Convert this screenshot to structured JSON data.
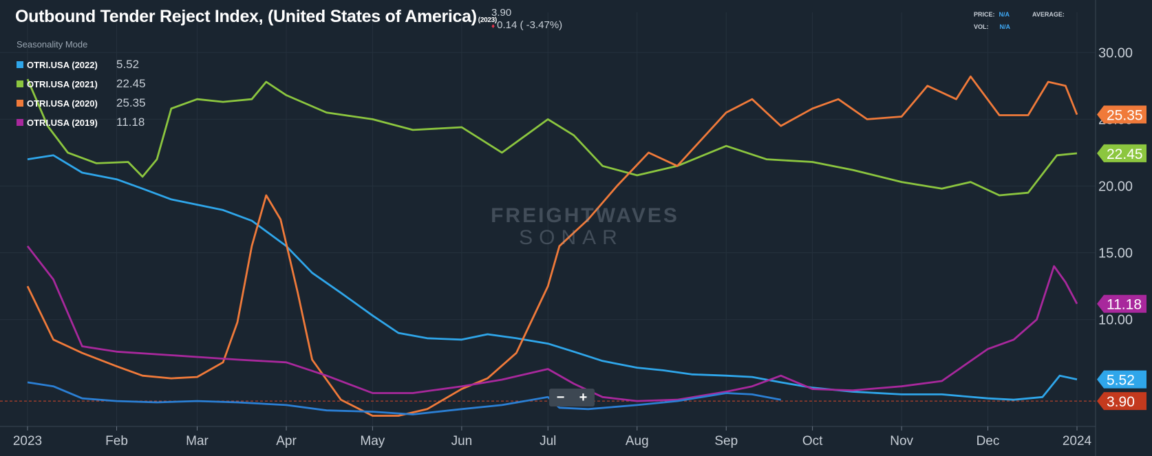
{
  "header": {
    "title": "Outbound Tender Reject Index, (United States of America)",
    "title_year": "(2023)",
    "last_value": "3.90",
    "change": "0.14 ( -3.47%)",
    "price_label": "PRICE:",
    "price_value": "N/A",
    "vol_label": "VOL:",
    "vol_value": "N/A",
    "average_label": "AVERAGE:"
  },
  "seasonality_label": "Seasonality Mode",
  "legend": [
    {
      "name": "OTRI.USA (2022)",
      "value": "5.52",
      "color": "#2fa6ea"
    },
    {
      "name": "OTRI.USA (2021)",
      "value": "22.45",
      "color": "#8cc63f"
    },
    {
      "name": "OTRI.USA (2020)",
      "value": "25.35",
      "color": "#f07a3a"
    },
    {
      "name": "OTRI.USA (2019)",
      "value": "11.18",
      "color": "#a8289c"
    }
  ],
  "watermark": {
    "line1": "FREIGHTWAVES",
    "line2": "SONAR"
  },
  "zoom": {
    "minus": "−",
    "plus": "+"
  },
  "chart_data": {
    "type": "line",
    "title": "Outbound Tender Reject Index, (United States of America)",
    "xlabel": "",
    "ylabel": "",
    "x_ticks": [
      "2023",
      "Feb",
      "Mar",
      "Apr",
      "May",
      "Jun",
      "Jul",
      "Aug",
      "Sep",
      "Oct",
      "Nov",
      "Dec",
      "2024"
    ],
    "y_ticks": [
      "10.00",
      "15.00",
      "20.00",
      "25.00",
      "30.00"
    ],
    "ylim": [
      2.0,
      33.0
    ],
    "xlim": [
      "2023-01-01",
      "2024-01-01"
    ],
    "grid": true,
    "legend_position": "top-left",
    "series": [
      {
        "name": "OTRI.USA (2022)",
        "color": "#2fa6ea",
        "last_label": "5.52",
        "points": [
          [
            "2023-01-01",
            22.0
          ],
          [
            "2023-01-10",
            22.3
          ],
          [
            "2023-01-20",
            21.0
          ],
          [
            "2023-02-01",
            20.5
          ],
          [
            "2023-02-10",
            19.8
          ],
          [
            "2023-02-20",
            19.0
          ],
          [
            "2023-03-01",
            18.6
          ],
          [
            "2023-03-10",
            18.2
          ],
          [
            "2023-03-20",
            17.4
          ],
          [
            "2023-04-01",
            15.5
          ],
          [
            "2023-04-10",
            13.5
          ],
          [
            "2023-04-20",
            12.0
          ],
          [
            "2023-05-01",
            10.3
          ],
          [
            "2023-05-10",
            9.0
          ],
          [
            "2023-05-20",
            8.6
          ],
          [
            "2023-06-01",
            8.5
          ],
          [
            "2023-06-10",
            8.9
          ],
          [
            "2023-06-20",
            8.6
          ],
          [
            "2023-07-01",
            8.2
          ],
          [
            "2023-07-10",
            7.6
          ],
          [
            "2023-07-20",
            6.9
          ],
          [
            "2023-08-01",
            6.4
          ],
          [
            "2023-08-10",
            6.2
          ],
          [
            "2023-08-20",
            5.9
          ],
          [
            "2023-09-01",
            5.8
          ],
          [
            "2023-09-10",
            5.7
          ],
          [
            "2023-09-20",
            5.3
          ],
          [
            "2023-10-01",
            4.9
          ],
          [
            "2023-10-15",
            4.6
          ],
          [
            "2023-11-01",
            4.4
          ],
          [
            "2023-11-15",
            4.4
          ],
          [
            "2023-12-01",
            4.1
          ],
          [
            "2023-12-10",
            4.0
          ],
          [
            "2023-12-20",
            4.2
          ],
          [
            "2023-12-26",
            5.8
          ],
          [
            "2024-01-01",
            5.52
          ]
        ]
      },
      {
        "name": "OTRI.USA (2021)",
        "color": "#8cc63f",
        "last_label": "22.45",
        "points": [
          [
            "2023-01-01",
            28.0
          ],
          [
            "2023-01-08",
            24.5
          ],
          [
            "2023-01-15",
            22.5
          ],
          [
            "2023-01-25",
            21.7
          ],
          [
            "2023-02-05",
            21.8
          ],
          [
            "2023-02-10",
            20.7
          ],
          [
            "2023-02-15",
            22.0
          ],
          [
            "2023-02-20",
            25.8
          ],
          [
            "2023-03-01",
            26.5
          ],
          [
            "2023-03-10",
            26.3
          ],
          [
            "2023-03-20",
            26.5
          ],
          [
            "2023-03-25",
            27.8
          ],
          [
            "2023-04-01",
            26.8
          ],
          [
            "2023-04-15",
            25.5
          ],
          [
            "2023-05-01",
            25.0
          ],
          [
            "2023-05-15",
            24.2
          ],
          [
            "2023-06-01",
            24.4
          ],
          [
            "2023-06-15",
            22.5
          ],
          [
            "2023-07-01",
            25.0
          ],
          [
            "2023-07-10",
            23.8
          ],
          [
            "2023-07-20",
            21.5
          ],
          [
            "2023-08-01",
            20.8
          ],
          [
            "2023-08-15",
            21.5
          ],
          [
            "2023-09-01",
            23.0
          ],
          [
            "2023-09-15",
            22.0
          ],
          [
            "2023-10-01",
            21.8
          ],
          [
            "2023-10-15",
            21.2
          ],
          [
            "2023-11-01",
            20.3
          ],
          [
            "2023-11-15",
            19.8
          ],
          [
            "2023-11-25",
            20.3
          ],
          [
            "2023-12-05",
            19.3
          ],
          [
            "2023-12-15",
            19.5
          ],
          [
            "2023-12-25",
            22.3
          ],
          [
            "2024-01-01",
            22.45
          ]
        ]
      },
      {
        "name": "OTRI.USA (2020)",
        "color": "#f07a3a",
        "last_label": "25.35",
        "points": [
          [
            "2023-01-01",
            12.5
          ],
          [
            "2023-01-10",
            8.5
          ],
          [
            "2023-01-20",
            7.5
          ],
          [
            "2023-02-01",
            6.5
          ],
          [
            "2023-02-10",
            5.8
          ],
          [
            "2023-02-20",
            5.6
          ],
          [
            "2023-03-01",
            5.7
          ],
          [
            "2023-03-10",
            6.8
          ],
          [
            "2023-03-15",
            9.8
          ],
          [
            "2023-03-20",
            15.5
          ],
          [
            "2023-03-25",
            19.3
          ],
          [
            "2023-03-30",
            17.5
          ],
          [
            "2023-04-05",
            12.0
          ],
          [
            "2023-04-10",
            7.0
          ],
          [
            "2023-04-20",
            4.0
          ],
          [
            "2023-05-01",
            2.8
          ],
          [
            "2023-05-10",
            2.8
          ],
          [
            "2023-05-20",
            3.3
          ],
          [
            "2023-06-01",
            4.8
          ],
          [
            "2023-06-10",
            5.6
          ],
          [
            "2023-06-20",
            7.5
          ],
          [
            "2023-07-01",
            12.5
          ],
          [
            "2023-07-05",
            15.5
          ],
          [
            "2023-07-15",
            17.5
          ],
          [
            "2023-07-25",
            20.0
          ],
          [
            "2023-08-05",
            22.5
          ],
          [
            "2023-08-15",
            21.5
          ],
          [
            "2023-09-01",
            25.5
          ],
          [
            "2023-09-10",
            26.5
          ],
          [
            "2023-09-20",
            24.5
          ],
          [
            "2023-10-01",
            25.8
          ],
          [
            "2023-10-10",
            26.5
          ],
          [
            "2023-10-20",
            25.0
          ],
          [
            "2023-11-01",
            25.2
          ],
          [
            "2023-11-10",
            27.5
          ],
          [
            "2023-11-20",
            26.5
          ],
          [
            "2023-11-25",
            28.2
          ],
          [
            "2023-12-05",
            25.3
          ],
          [
            "2023-12-15",
            25.3
          ],
          [
            "2023-12-22",
            27.8
          ],
          [
            "2023-12-28",
            27.5
          ],
          [
            "2024-01-01",
            25.35
          ]
        ]
      },
      {
        "name": "OTRI.USA (2019)",
        "color": "#a8289c",
        "last_label": "11.18",
        "points": [
          [
            "2023-01-01",
            15.5
          ],
          [
            "2023-01-10",
            13.0
          ],
          [
            "2023-01-20",
            8.0
          ],
          [
            "2023-02-01",
            7.6
          ],
          [
            "2023-02-15",
            7.4
          ],
          [
            "2023-03-01",
            7.2
          ],
          [
            "2023-03-15",
            7.0
          ],
          [
            "2023-04-01",
            6.8
          ],
          [
            "2023-04-15",
            5.8
          ],
          [
            "2023-05-01",
            4.5
          ],
          [
            "2023-05-15",
            4.5
          ],
          [
            "2023-06-01",
            5.0
          ],
          [
            "2023-06-15",
            5.5
          ],
          [
            "2023-07-01",
            6.3
          ],
          [
            "2023-07-10",
            5.2
          ],
          [
            "2023-07-20",
            4.2
          ],
          [
            "2023-08-01",
            3.9
          ],
          [
            "2023-08-15",
            4.0
          ],
          [
            "2023-09-01",
            4.6
          ],
          [
            "2023-09-10",
            5.0
          ],
          [
            "2023-09-20",
            5.8
          ],
          [
            "2023-10-01",
            4.8
          ],
          [
            "2023-10-15",
            4.7
          ],
          [
            "2023-11-01",
            5.0
          ],
          [
            "2023-11-15",
            5.4
          ],
          [
            "2023-12-01",
            7.8
          ],
          [
            "2023-12-10",
            8.5
          ],
          [
            "2023-12-18",
            10.0
          ],
          [
            "2023-12-24",
            14.0
          ],
          [
            "2023-12-28",
            12.8
          ],
          [
            "2024-01-01",
            11.18
          ]
        ]
      },
      {
        "name": "OTRI.USA (2023)",
        "color": "#2b7fd4",
        "last_label": "3.90",
        "points": [
          [
            "2023-01-01",
            5.3
          ],
          [
            "2023-01-10",
            5.0
          ],
          [
            "2023-01-20",
            4.1
          ],
          [
            "2023-02-01",
            3.9
          ],
          [
            "2023-02-15",
            3.8
          ],
          [
            "2023-03-01",
            3.9
          ],
          [
            "2023-03-15",
            3.8
          ],
          [
            "2023-04-01",
            3.6
          ],
          [
            "2023-04-15",
            3.2
          ],
          [
            "2023-05-01",
            3.1
          ],
          [
            "2023-05-15",
            2.9
          ],
          [
            "2023-06-01",
            3.3
          ],
          [
            "2023-06-15",
            3.6
          ],
          [
            "2023-07-01",
            4.2
          ],
          [
            "2023-07-05",
            3.4
          ],
          [
            "2023-07-15",
            3.3
          ],
          [
            "2023-08-01",
            3.6
          ],
          [
            "2023-08-15",
            3.9
          ],
          [
            "2023-09-01",
            4.5
          ],
          [
            "2023-09-10",
            4.4
          ],
          [
            "2023-09-20",
            4.0
          ]
        ]
      }
    ],
    "reference_line": {
      "value": 3.9,
      "label": "3.90",
      "color": "#d94a2a"
    }
  }
}
